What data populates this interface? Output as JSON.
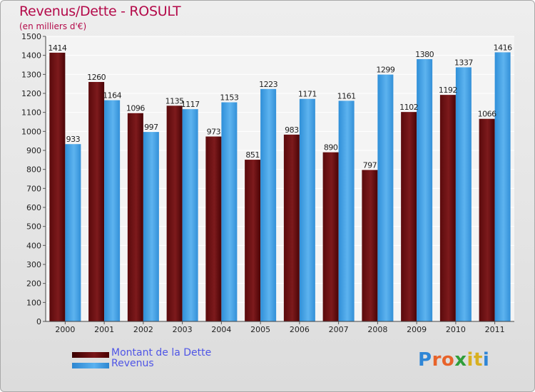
{
  "title": "Revenus/Dette - ROSULT",
  "subtitle": "(en milliers d'€)",
  "logo_text": "Proxiti",
  "colors": {
    "dette": "#7a1518",
    "revenus": "#3f9fe2",
    "title": "#b40a4a",
    "legend_text": "#4f55e6"
  },
  "chart_data": {
    "type": "bar",
    "title": "Revenus/Dette - ROSULT",
    "subtitle": "(en milliers d'€)",
    "categories": [
      "2000",
      "2001",
      "2002",
      "2003",
      "2004",
      "2005",
      "2006",
      "2007",
      "2008",
      "2009",
      "2010",
      "2011"
    ],
    "series": [
      {
        "name": "Montant de la Dette",
        "values": [
          1414,
          1260,
          1096,
          1135,
          973,
          851,
          983,
          890,
          797,
          1102,
          1192,
          1066
        ]
      },
      {
        "name": "Revenus",
        "values": [
          933,
          1164,
          997,
          1117,
          1153,
          1223,
          1171,
          1161,
          1299,
          1380,
          1337,
          1416
        ]
      }
    ],
    "ylim": [
      0,
      1500
    ],
    "yticks": [
      0,
      100,
      200,
      300,
      400,
      500,
      600,
      700,
      800,
      900,
      1000,
      1100,
      1200,
      1300,
      1400,
      1500
    ],
    "grid": true,
    "legend_position": "bottom-left"
  },
  "legend": {
    "items": [
      {
        "label": "Montant de la Dette"
      },
      {
        "label": "Revenus"
      }
    ]
  }
}
